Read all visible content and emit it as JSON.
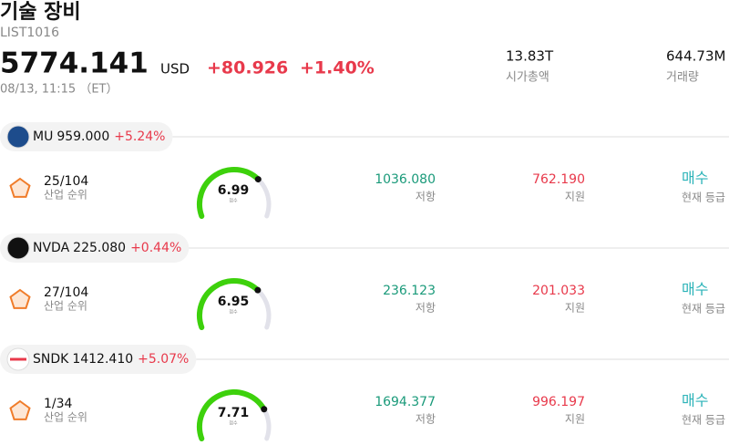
{
  "header": {
    "title": "기술 장비",
    "list_id": "LIST1016",
    "price": "5774.141",
    "currency": "USD",
    "change": "+80.926",
    "change_percent": "+1.40%",
    "timestamp": "08/13, 11:15 （ET）",
    "market_cap": {
      "value": "13.83T",
      "label": "시가총액"
    },
    "volume": {
      "value": "644.73M",
      "label": "거래량"
    }
  },
  "stocks": [
    {
      "ticker": "MU",
      "price": "959.000",
      "change_percent": "+5.24%",
      "rank": "25/104",
      "rank_label": "산업 순위",
      "score": 6.99,
      "score_label": "점수",
      "resistance": "1036.080",
      "resistance_label": "저항",
      "support": "762.190",
      "support_label": "지원",
      "rating": "매수",
      "rating_label": "현재 등급"
    },
    {
      "ticker": "NVDA",
      "price": "225.080",
      "change_percent": "+0.44%",
      "rank": "27/104",
      "rank_label": "산업 순위",
      "score": 6.95,
      "score_label": "점수",
      "resistance": "236.123",
      "resistance_label": "저항",
      "support": "201.033",
      "support_label": "지원",
      "rating": "매수",
      "rating_label": "현재 등급"
    },
    {
      "ticker": "SNDK",
      "price": "1412.410",
      "change_percent": "+5.07%",
      "rank": "1/34",
      "rank_label": "산업 순위",
      "score": 7.71,
      "score_label": "점수",
      "resistance": "1694.377",
      "resistance_label": "저항",
      "support": "996.197",
      "support_label": "지원",
      "rating": "매수",
      "rating_label": "현재 등급"
    }
  ]
}
